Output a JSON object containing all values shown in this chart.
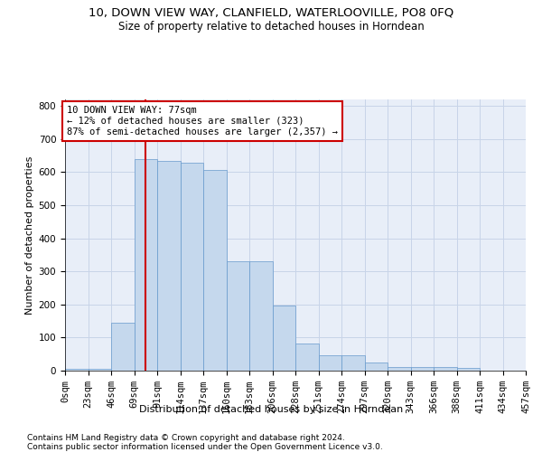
{
  "title1": "10, DOWN VIEW WAY, CLANFIELD, WATERLOOVILLE, PO8 0FQ",
  "title2": "Size of property relative to detached houses in Horndean",
  "xlabel": "Distribution of detached houses by size in Horndean",
  "ylabel": "Number of detached properties",
  "footnote1": "Contains HM Land Registry data © Crown copyright and database right 2024.",
  "footnote2": "Contains public sector information licensed under the Open Government Licence v3.0.",
  "bar_color": "#c5d8ed",
  "bar_edge_color": "#6699cc",
  "grid_color": "#c8d4e8",
  "background_color": "#e8eef8",
  "annotation_line1": "10 DOWN VIEW WAY: 77sqm",
  "annotation_line2": "← 12% of detached houses are smaller (323)",
  "annotation_line3": "87% of semi-detached houses are larger (2,357) →",
  "annotation_box_color": "#ffffff",
  "annotation_border_color": "#cc0000",
  "vline_color": "#cc0000",
  "vline_x": 80,
  "bin_edges": [
    0,
    23,
    46,
    69,
    92,
    115,
    138,
    161,
    184,
    207,
    230,
    253,
    276,
    299,
    322,
    345,
    368,
    391,
    414,
    437,
    460
  ],
  "bin_labels": [
    "0sqm",
    "23sqm",
    "46sqm",
    "69sqm",
    "91sqm",
    "114sqm",
    "137sqm",
    "160sqm",
    "183sqm",
    "206sqm",
    "228sqm",
    "251sqm",
    "274sqm",
    "297sqm",
    "320sqm",
    "343sqm",
    "366sqm",
    "388sqm",
    "411sqm",
    "434sqm",
    "457sqm"
  ],
  "bar_heights": [
    5,
    5,
    145,
    640,
    635,
    630,
    608,
    332,
    332,
    197,
    83,
    47,
    47,
    25,
    12,
    12,
    10,
    7,
    0,
    0,
    5
  ],
  "ylim": [
    0,
    820
  ],
  "yticks": [
    0,
    100,
    200,
    300,
    400,
    500,
    600,
    700,
    800
  ],
  "title1_fontsize": 9.5,
  "title2_fontsize": 8.5,
  "axis_label_fontsize": 8,
  "tick_fontsize": 7.5,
  "footnote_fontsize": 6.5,
  "annotation_fontsize": 7.5
}
